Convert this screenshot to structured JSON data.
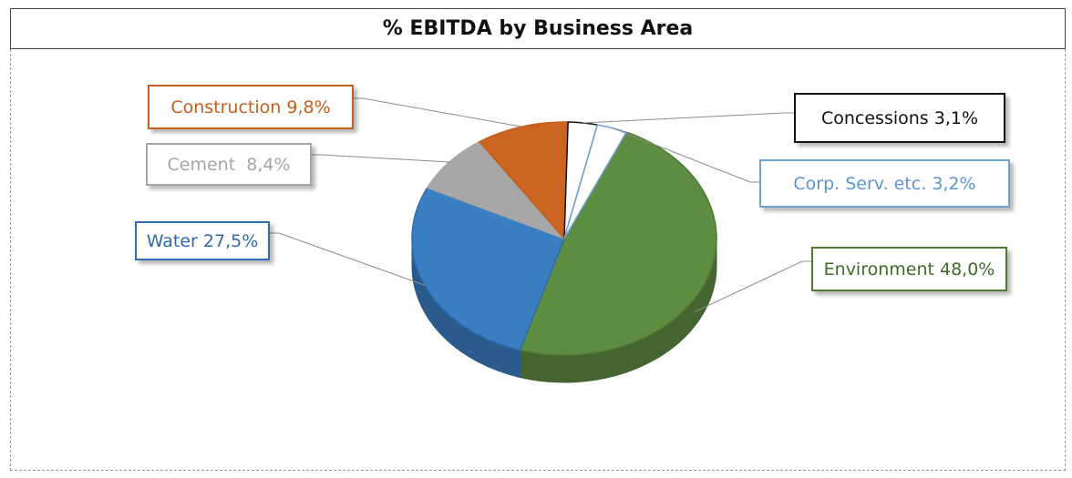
{
  "chart_data": {
    "type": "pie",
    "title": "% EBITDA by Business Area",
    "slices": [
      {
        "name": "Environment",
        "value": 48.0,
        "label": "Environment 48,0%",
        "color": "#5e8c41",
        "border": "#4f7a35",
        "text_color": "#3f6a26"
      },
      {
        "name": "Water",
        "value": 27.5,
        "label": "Water 27,5%",
        "color": "#3b7fc3",
        "border": "#2f6db0",
        "text_color": "#2d6aa8"
      },
      {
        "name": "Cement",
        "value": 8.4,
        "label": "Cement  8,4%",
        "color": "#a6a6a6",
        "border": "#a6a6a6",
        "text_color": "#a6a6a6"
      },
      {
        "name": "Construction",
        "value": 9.8,
        "label": "Construction 9,8%",
        "color": "#cb6421",
        "border": "#c65e1e",
        "text_color": "#c65e1e"
      },
      {
        "name": "Concessions",
        "value": 3.1,
        "label": "Concessions 3,1%",
        "color": "#ffffff",
        "border": "#111111",
        "text_color": "#111111"
      },
      {
        "name": "Corp. Serv. etc.",
        "value": 3.2,
        "label": "Corp. Serv. etc. 3,2%",
        "color": "#ffffff",
        "border": "#6fa3d6",
        "text_color": "#5b95cf"
      }
    ]
  }
}
